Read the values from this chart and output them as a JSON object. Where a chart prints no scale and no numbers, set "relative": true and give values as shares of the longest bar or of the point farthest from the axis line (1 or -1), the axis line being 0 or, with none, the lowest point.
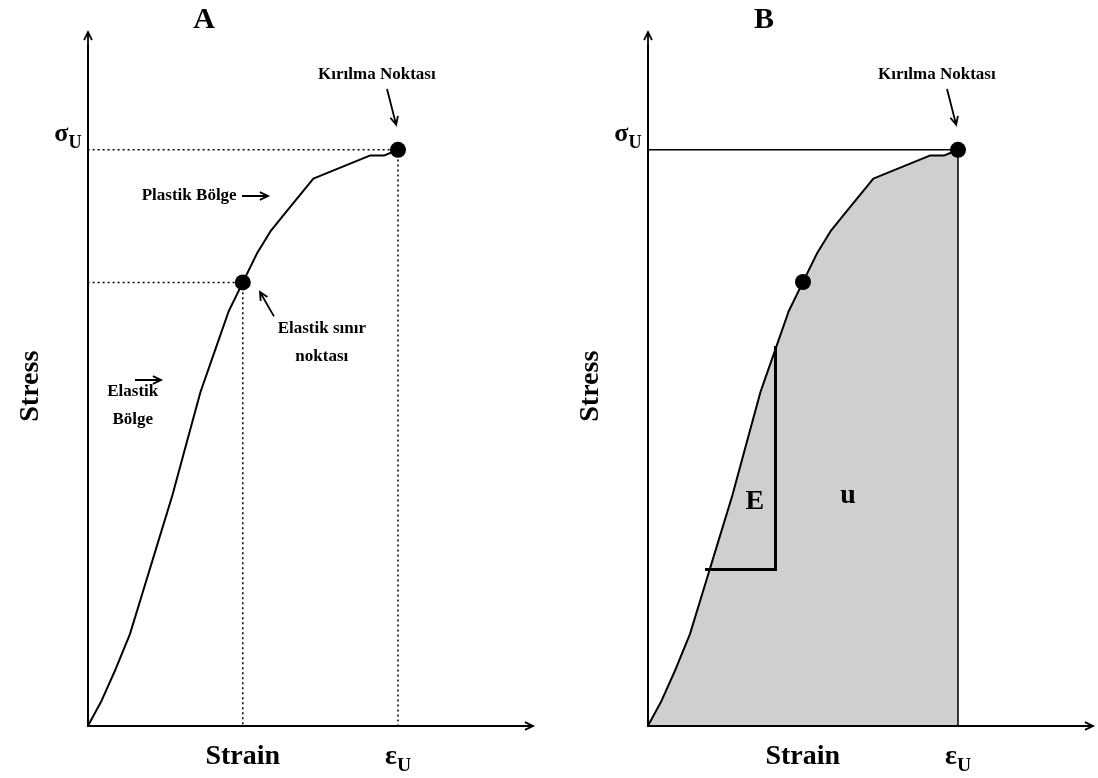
{
  "chart_data": [
    {
      "type": "line",
      "title": "A",
      "xlabel": "Strain",
      "ylabel": "Stress",
      "relative": true,
      "legend": false,
      "categories": [
        null,
        null,
        null,
        null,
        null,
        null,
        null,
        null,
        null,
        null,
        null,
        null,
        null,
        null,
        null,
        null,
        null,
        null,
        null,
        null,
        null,
        null,
        null
      ],
      "series": [
        {
          "color": "#000000",
          "marker": "none",
          "values": [
            0,
            0.045,
            0.1,
            0.16,
            0.24,
            0.32,
            0.4,
            0.49,
            0.58,
            0.65,
            0.72,
            0.77,
            0.82,
            0.86,
            0.89,
            0.92,
            0.95,
            0.96,
            0.97,
            0.98,
            0.99,
            0.99,
            1
          ]
        }
      ],
      "ref_lines": [
        {
          "axis": "y",
          "value": 1,
          "label": "σ$_{U}$",
          "line_style": "dotted"
        },
        {
          "axis": "y",
          "value": 0.77,
          "line_style": "dotted"
        }
      ],
      "annotations": [
        "Kırılma Noktası",
        "Plastik Bölge",
        "Elastik sınır noktası",
        "Elastik Bölge",
        "ε$_{U}$"
      ]
    },
    {
      "type": "area",
      "title": "B",
      "xlabel": "Strain",
      "ylabel": "Stress",
      "relative": true,
      "legend": false,
      "categories": [
        null,
        null,
        null,
        null,
        null,
        null,
        null,
        null,
        null,
        null,
        null,
        null,
        null,
        null,
        null,
        null,
        null,
        null,
        null,
        null,
        null,
        null,
        null
      ],
      "series": [
        {
          "color": "#000000",
          "marker": "none",
          "values": [
            0,
            0.045,
            0.1,
            0.16,
            0.24,
            0.32,
            0.4,
            0.49,
            0.58,
            0.65,
            0.72,
            0.77,
            0.82,
            0.86,
            0.89,
            0.92,
            0.95,
            0.96,
            0.97,
            0.98,
            0.99,
            0.99,
            1
          ]
        }
      ],
      "ref_lines": [
        {
          "axis": "y",
          "value": 1,
          "label": "σ$_{U}$",
          "line_style": "solid"
        }
      ],
      "annotations": [
        "Kırılma Noktası",
        "E",
        "u",
        "ε$_{U}$"
      ]
    }
  ]
}
